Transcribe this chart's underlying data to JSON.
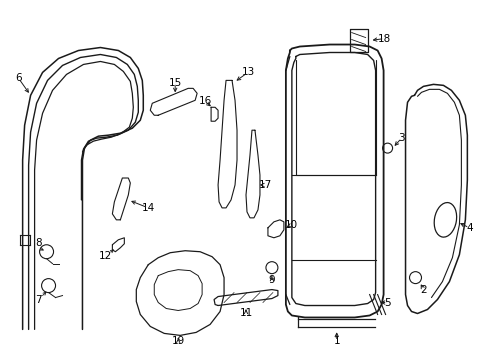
{
  "background_color": "#ffffff",
  "line_color": "#1a1a1a",
  "text_color": "#000000",
  "font_size": 7.5,
  "fig_width": 4.89,
  "fig_height": 3.6,
  "dpi": 100
}
